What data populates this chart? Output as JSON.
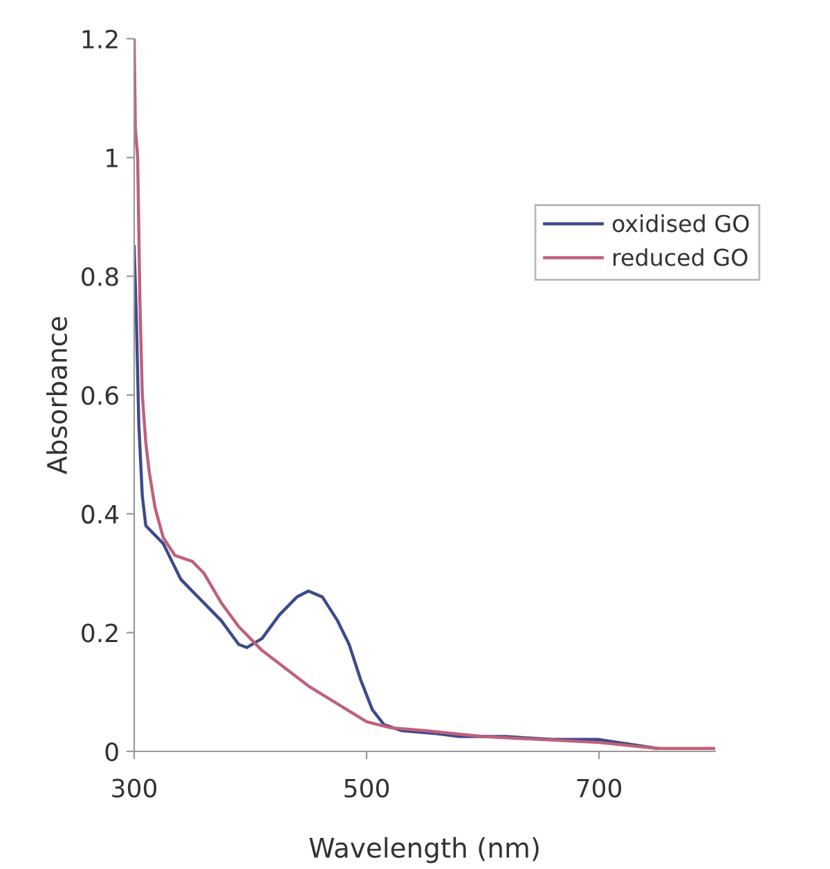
{
  "chart_data": {
    "type": "line",
    "xlabel": "Wavelength (nm)",
    "ylabel": "Absorbance",
    "xlim": [
      300,
      800
    ],
    "xticks": [
      300,
      500,
      700
    ],
    "ylim": [
      0,
      1.2
    ],
    "yticks": [
      0,
      0.2,
      0.4,
      0.6,
      0.8,
      1,
      1.2
    ],
    "grid": false,
    "legend": "right",
    "marker": "none",
    "line_style": "solid",
    "series": [
      {
        "name": "oxidised GO",
        "color": "#3d4a8c",
        "x": [
          300,
          302,
          304,
          307,
          310,
          325,
          340,
          355,
          375,
          390,
          397,
          410,
          425,
          440,
          450,
          462,
          475,
          485,
          495,
          505,
          515,
          530,
          560,
          580,
          620,
          660,
          700,
          750
        ],
        "values": [
          0.85,
          0.72,
          0.55,
          0.43,
          0.38,
          0.35,
          0.29,
          0.26,
          0.22,
          0.18,
          0.175,
          0.19,
          0.23,
          0.26,
          0.27,
          0.26,
          0.22,
          0.18,
          0.12,
          0.07,
          0.045,
          0.035,
          0.03,
          0.025,
          0.025,
          0.02,
          0.02,
          0.005
        ]
      },
      {
        "name": "reduced GO",
        "color": "#c0607a",
        "x": [
          300,
          301,
          303,
          305,
          307,
          310,
          313,
          318,
          325,
          335,
          350,
          360,
          375,
          390,
          410,
          430,
          450,
          475,
          500,
          520,
          550,
          600,
          650,
          700,
          750,
          800
        ],
        "values": [
          1.2,
          1.05,
          1.0,
          0.75,
          0.6,
          0.52,
          0.47,
          0.41,
          0.36,
          0.33,
          0.32,
          0.3,
          0.25,
          0.21,
          0.17,
          0.14,
          0.11,
          0.08,
          0.05,
          0.04,
          0.035,
          0.025,
          0.02,
          0.015,
          0.005,
          0.005
        ]
      }
    ]
  }
}
